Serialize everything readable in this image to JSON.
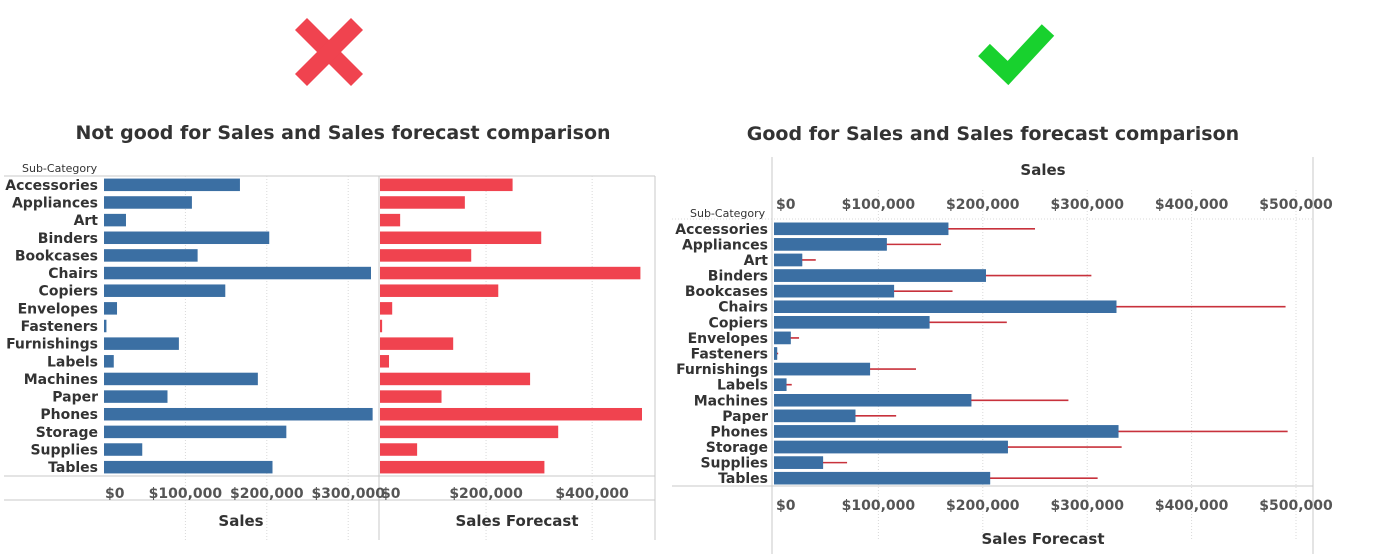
{
  "icons": {
    "bad": "x-mark-icon",
    "good": "check-mark-icon",
    "bad_color": "#f0434f",
    "good_color": "#18d12e"
  },
  "colors": {
    "sales_bar": "#3b6fa3",
    "forecast_bar": "#f0434f",
    "forecast_line": "#c8323c"
  },
  "chart_data": [
    {
      "type": "bar",
      "title": "Not good for Sales and Sales forecast comparison",
      "row_header": "Sub-Category",
      "categories": [
        "Accessories",
        "Appliances",
        "Art",
        "Binders",
        "Bookcases",
        "Chairs",
        "Copiers",
        "Envelopes",
        "Fasteners",
        "Furnishings",
        "Labels",
        "Machines",
        "Paper",
        "Phones",
        "Storage",
        "Supplies",
        "Tables"
      ],
      "panels": [
        {
          "xlabel": "Sales",
          "xlim": [
            0,
            340000
          ],
          "ticks": [
            0,
            100000,
            200000,
            300000
          ],
          "tick_labels": [
            "$0",
            "$100,000",
            "$200,000",
            "$300,000"
          ],
          "series": [
            {
              "name": "Sales",
              "values": [
                167000,
                108000,
                27000,
                203000,
                115000,
                328000,
                149000,
                16000,
                3000,
                92000,
                12000,
                189000,
                78000,
                330000,
                224000,
                47000,
                207000
              ]
            }
          ]
        },
        {
          "xlabel": "Sales Forecast",
          "xlim": [
            0,
            510000
          ],
          "ticks": [
            0,
            200000,
            400000
          ],
          "tick_labels": [
            "$0",
            "$200,000",
            "$400,000"
          ],
          "series": [
            {
              "name": "Sales Forecast",
              "values": [
                250000,
                160000,
                38000,
                304000,
                172000,
                491000,
                223000,
                23000,
                4000,
                138000,
                17000,
                283000,
                116000,
                494000,
                336000,
                70000,
                310000
              ]
            }
          ]
        }
      ]
    },
    {
      "type": "bar",
      "title": "Good for Sales and Sales forecast comparison",
      "row_header": "Sub-Category",
      "top_axis_label": "Sales",
      "xlabel": "Sales Forecast",
      "xlim": [
        0,
        520000
      ],
      "ticks": [
        0,
        100000,
        200000,
        300000,
        400000,
        500000
      ],
      "tick_labels": [
        "$0",
        "$100,000",
        "$200,000",
        "$300,000",
        "$400,000",
        "$500,000"
      ],
      "categories": [
        "Accessories",
        "Appliances",
        "Art",
        "Binders",
        "Bookcases",
        "Chairs",
        "Copiers",
        "Envelopes",
        "Fasteners",
        "Furnishings",
        "Labels",
        "Machines",
        "Paper",
        "Phones",
        "Storage",
        "Supplies",
        "Tables"
      ],
      "series": [
        {
          "name": "Sales",
          "values": [
            167000,
            108000,
            27000,
            203000,
            115000,
            328000,
            149000,
            16000,
            3000,
            92000,
            12000,
            189000,
            78000,
            330000,
            224000,
            47000,
            207000
          ]
        },
        {
          "name": "Sales Forecast",
          "values": [
            250000,
            160000,
            40000,
            304000,
            171000,
            490000,
            223000,
            24000,
            4000,
            136000,
            17000,
            282000,
            117000,
            492000,
            333000,
            70000,
            310000
          ]
        }
      ]
    }
  ]
}
